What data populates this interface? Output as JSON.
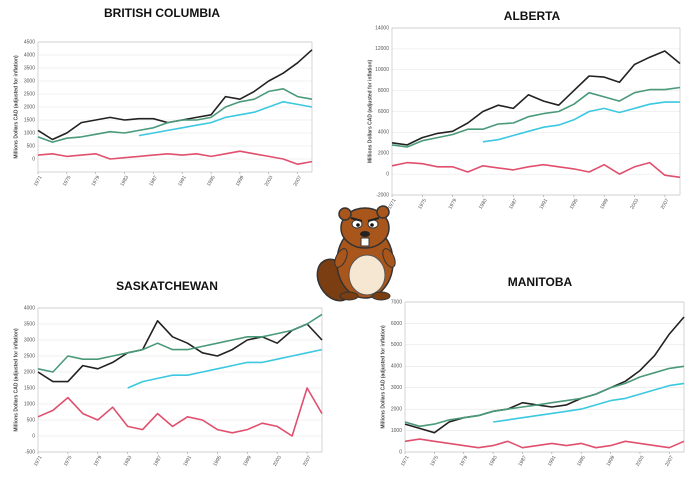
{
  "chart_data": [
    {
      "type": "line",
      "title": "BRITISH COLUMBIA",
      "y_label": "Millions Dollars CAD (adjusted for inflation)",
      "x": [
        1971,
        1973,
        1975,
        1977,
        1979,
        1981,
        1983,
        1985,
        1987,
        1989,
        1991,
        1993,
        1995,
        1997,
        1999,
        2001,
        2003,
        2005,
        2007,
        2009
      ],
      "xlim": [
        1971,
        2009
      ],
      "xticks": [
        1971,
        1975,
        1979,
        1983,
        1987,
        1991,
        1995,
        1999,
        2003,
        2007
      ],
      "ylim": [
        -500,
        4500
      ],
      "yticks": [
        0,
        500,
        1000,
        1500,
        2000,
        2500,
        3000,
        3500,
        4000,
        4500
      ],
      "grid": true,
      "series": [
        {
          "color": "#222222",
          "values": [
            1100,
            750,
            1000,
            1400,
            1500,
            1600,
            1500,
            1550,
            1550,
            1400,
            1500,
            1600,
            1700,
            2400,
            2300,
            2600,
            3000,
            3300,
            3700,
            4200
          ]
        },
        {
          "color": "#4a9a7a",
          "values": [
            850,
            650,
            800,
            850,
            950,
            1050,
            1000,
            1100,
            1200,
            1400,
            1500,
            1500,
            1600,
            2000,
            2200,
            2300,
            2600,
            2700,
            2400,
            2300
          ]
        },
        {
          "color": "#3cc8e0",
          "values": [
            null,
            null,
            null,
            null,
            null,
            null,
            null,
            900,
            1000,
            1100,
            1200,
            1300,
            1400,
            1600,
            1700,
            1800,
            2000,
            2200,
            2100,
            2000
          ]
        },
        {
          "color": "#e0506e",
          "values": [
            150,
            200,
            100,
            150,
            200,
            0,
            50,
            100,
            150,
            200,
            150,
            200,
            100,
            200,
            300,
            200,
            100,
            0,
            -200,
            -100
          ]
        }
      ]
    },
    {
      "type": "line",
      "title": "ALBERTA",
      "y_label": "Millions Dollars CAD (adjusted for inflation)",
      "x": [
        1971,
        1973,
        1975,
        1977,
        1979,
        1981,
        1983,
        1985,
        1987,
        1989,
        1991,
        1993,
        1995,
        1997,
        1999,
        2001,
        2003,
        2005,
        2007,
        2009
      ],
      "xlim": [
        1971,
        2009
      ],
      "xticks": [
        1971,
        1975,
        1979,
        1983,
        1987,
        1991,
        1995,
        1999,
        2003,
        2007
      ],
      "ylim": [
        -2000,
        14000
      ],
      "yticks": [
        -2000,
        0,
        2000,
        4000,
        6000,
        8000,
        10000,
        12000,
        14000
      ],
      "grid": true,
      "series": [
        {
          "color": "#222222",
          "values": [
            3000,
            2800,
            3500,
            3900,
            4100,
            4900,
            6000,
            6600,
            6300,
            7600,
            7000,
            6600,
            8000,
            9400,
            9300,
            8800,
            10500,
            11200,
            11800,
            10600
          ]
        },
        {
          "color": "#4a9a7a",
          "values": [
            2800,
            2600,
            3200,
            3500,
            3800,
            4300,
            4300,
            4800,
            4900,
            5500,
            5800,
            6000,
            6700,
            7800,
            7400,
            7000,
            7800,
            8100,
            8100,
            8300
          ]
        },
        {
          "color": "#3cc8e0",
          "values": [
            null,
            null,
            null,
            null,
            null,
            null,
            3100,
            3300,
            3700,
            4100,
            4500,
            4700,
            5200,
            6000,
            6300,
            5900,
            6300,
            6700,
            6900,
            6900
          ]
        },
        {
          "color": "#e0506e",
          "values": [
            800,
            1100,
            1000,
            700,
            700,
            200,
            800,
            600,
            400,
            700,
            900,
            700,
            500,
            200,
            900,
            0,
            700,
            1100,
            -100,
            -300
          ]
        }
      ]
    },
    {
      "type": "line",
      "title": "SASKATCHEWAN",
      "y_label": "Millions Dollars CAD (adjusted for inflation)",
      "x": [
        1971,
        1973,
        1975,
        1977,
        1979,
        1981,
        1983,
        1985,
        1987,
        1989,
        1991,
        1993,
        1995,
        1997,
        1999,
        2001,
        2003,
        2005,
        2007,
        2009
      ],
      "xlim": [
        1971,
        2009
      ],
      "xticks": [
        1971,
        1975,
        1979,
        1983,
        1987,
        1991,
        1995,
        1999,
        2003,
        2007
      ],
      "ylim": [
        -500,
        4000
      ],
      "yticks": [
        -500,
        0,
        500,
        1000,
        1500,
        2000,
        2500,
        3000,
        3500,
        4000
      ],
      "grid": true,
      "series": [
        {
          "color": "#222222",
          "values": [
            2000,
            1700,
            1700,
            2200,
            2100,
            2300,
            2600,
            2700,
            3600,
            3100,
            2900,
            2600,
            2500,
            2700,
            3000,
            3100,
            2900,
            3300,
            3500,
            3000
          ]
        },
        {
          "color": "#4a9a7a",
          "values": [
            2100,
            2000,
            2500,
            2400,
            2400,
            2500,
            2600,
            2700,
            2900,
            2700,
            2700,
            2800,
            2900,
            3000,
            3100,
            3100,
            3200,
            3300,
            3500,
            3800
          ]
        },
        {
          "color": "#3cc8e0",
          "values": [
            null,
            null,
            null,
            null,
            null,
            null,
            1500,
            1700,
            1800,
            1900,
            1900,
            2000,
            2100,
            2200,
            2300,
            2300,
            2400,
            2500,
            2600,
            2700
          ]
        },
        {
          "color": "#e0506e",
          "values": [
            600,
            800,
            1200,
            700,
            500,
            900,
            300,
            200,
            700,
            300,
            600,
            500,
            200,
            100,
            200,
            400,
            300,
            0,
            1500,
            700
          ]
        }
      ]
    },
    {
      "type": "line",
      "title": "MANITOBA",
      "y_label": "Millions Dollars CAD (adjusted for inflation)",
      "x": [
        1971,
        1973,
        1975,
        1977,
        1979,
        1981,
        1983,
        1985,
        1987,
        1989,
        1991,
        1993,
        1995,
        1997,
        1999,
        2001,
        2003,
        2005,
        2007,
        2009
      ],
      "xlim": [
        1971,
        2009
      ],
      "xticks": [
        1971,
        1975,
        1979,
        1983,
        1987,
        1991,
        1995,
        1999,
        2003,
        2007
      ],
      "ylim": [
        0,
        7000
      ],
      "yticks": [
        0,
        1000,
        2000,
        3000,
        4000,
        5000,
        6000,
        7000
      ],
      "grid": true,
      "series": [
        {
          "color": "#222222",
          "values": [
            1300,
            1100,
            900,
            1400,
            1600,
            1700,
            1900,
            2000,
            2300,
            2200,
            2100,
            2200,
            2500,
            2700,
            3000,
            3300,
            3800,
            4500,
            5500,
            6300
          ]
        },
        {
          "color": "#4a9a7a",
          "values": [
            1400,
            1200,
            1300,
            1500,
            1600,
            1700,
            1900,
            2000,
            2100,
            2200,
            2300,
            2400,
            2500,
            2700,
            3000,
            3200,
            3500,
            3700,
            3900,
            4000
          ]
        },
        {
          "color": "#3cc8e0",
          "values": [
            null,
            null,
            null,
            null,
            null,
            null,
            1400,
            1500,
            1600,
            1700,
            1800,
            1900,
            2000,
            2200,
            2400,
            2500,
            2700,
            2900,
            3100,
            3200
          ]
        },
        {
          "color": "#e0506e",
          "values": [
            500,
            600,
            500,
            400,
            300,
            200,
            300,
            500,
            200,
            300,
            400,
            300,
            400,
            200,
            300,
            500,
            400,
            300,
            200,
            500
          ]
        }
      ]
    }
  ]
}
